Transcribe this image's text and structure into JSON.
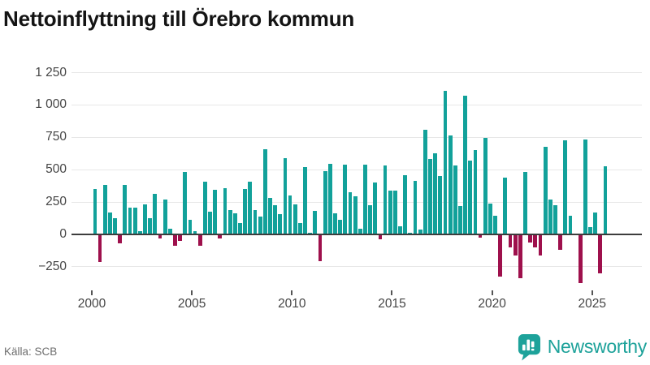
{
  "title": "Nettoinflyttning till Örebro kommun",
  "source": "Källa: SCB",
  "logo": {
    "text": "Newsworthy"
  },
  "chart_data": {
    "type": "bar",
    "title": "Nettoinflyttning till Örebro kommun",
    "period": "quarterly",
    "x_start": "2000 Q1",
    "x_end": "2025 Q3",
    "ylabel": "",
    "xlabel": "",
    "ylim": [
      -400,
      1300
    ],
    "grid": true,
    "legend": false,
    "colors": {
      "positive": "#12a19a",
      "negative": "#9e104c"
    },
    "y_ticks": [
      {
        "v": 1250,
        "label": "1 250"
      },
      {
        "v": 1000,
        "label": "1 000"
      },
      {
        "v": 750,
        "label": "750"
      },
      {
        "v": 500,
        "label": "500"
      },
      {
        "v": 250,
        "label": "250"
      },
      {
        "v": 0,
        "label": "0"
      },
      {
        "v": -250,
        "label": "−250"
      }
    ],
    "x_ticks": [
      {
        "year": 2000,
        "label": "2000"
      },
      {
        "year": 2005,
        "label": "2005"
      },
      {
        "year": 2010,
        "label": "2010"
      },
      {
        "year": 2015,
        "label": "2015"
      },
      {
        "year": 2020,
        "label": "2020"
      },
      {
        "year": 2025,
        "label": "2025"
      }
    ],
    "quarters": [
      {
        "year": 2000,
        "values": [
          350,
          -215,
          380,
          170
        ]
      },
      {
        "year": 2001,
        "values": [
          125,
          -70,
          385,
          205
        ]
      },
      {
        "year": 2002,
        "values": [
          205,
          25,
          230,
          125
        ]
      },
      {
        "year": 2003,
        "values": [
          315,
          -30,
          270,
          45
        ]
      },
      {
        "year": 2004,
        "values": [
          -85,
          -50,
          485,
          115
        ]
      },
      {
        "year": 2005,
        "values": [
          25,
          -90,
          410,
          175
        ]
      },
      {
        "year": 2006,
        "values": [
          345,
          -30,
          360,
          185
        ]
      },
      {
        "year": 2007,
        "values": [
          165,
          90,
          350,
          410
        ]
      },
      {
        "year": 2008,
        "values": [
          190,
          140,
          660,
          280
        ]
      },
      {
        "year": 2009,
        "values": [
          225,
          155,
          590,
          300
        ]
      },
      {
        "year": 2010,
        "values": [
          230,
          90,
          520,
          15
        ]
      },
      {
        "year": 2011,
        "values": [
          180,
          -205,
          490,
          545
        ]
      },
      {
        "year": 2012,
        "values": [
          160,
          115,
          540,
          325
        ]
      },
      {
        "year": 2013,
        "values": [
          295,
          45,
          540,
          225
        ]
      },
      {
        "year": 2014,
        "values": [
          400,
          -40,
          535,
          340
        ]
      },
      {
        "year": 2015,
        "values": [
          340,
          65,
          455,
          10
        ]
      },
      {
        "year": 2016,
        "values": [
          415,
          40,
          810,
          585
        ]
      },
      {
        "year": 2017,
        "values": [
          625,
          450,
          1110,
          765
        ]
      },
      {
        "year": 2018,
        "values": [
          530,
          220,
          1070,
          570
        ]
      },
      {
        "year": 2019,
        "values": [
          650,
          -25,
          745,
          240
        ]
      },
      {
        "year": 2020,
        "values": [
          145,
          -325,
          440,
          -100
        ]
      },
      {
        "year": 2021,
        "values": [
          -165,
          -340,
          480,
          -65
        ]
      },
      {
        "year": 2022,
        "values": [
          -100,
          -160,
          675,
          270
        ]
      },
      {
        "year": 2023,
        "values": [
          225,
          -120,
          725,
          145
        ]
      },
      {
        "year": 2024,
        "values": [
          0,
          -375,
          730,
          55
        ]
      },
      {
        "year": 2025,
        "values": [
          170,
          -300,
          525
        ]
      }
    ]
  }
}
